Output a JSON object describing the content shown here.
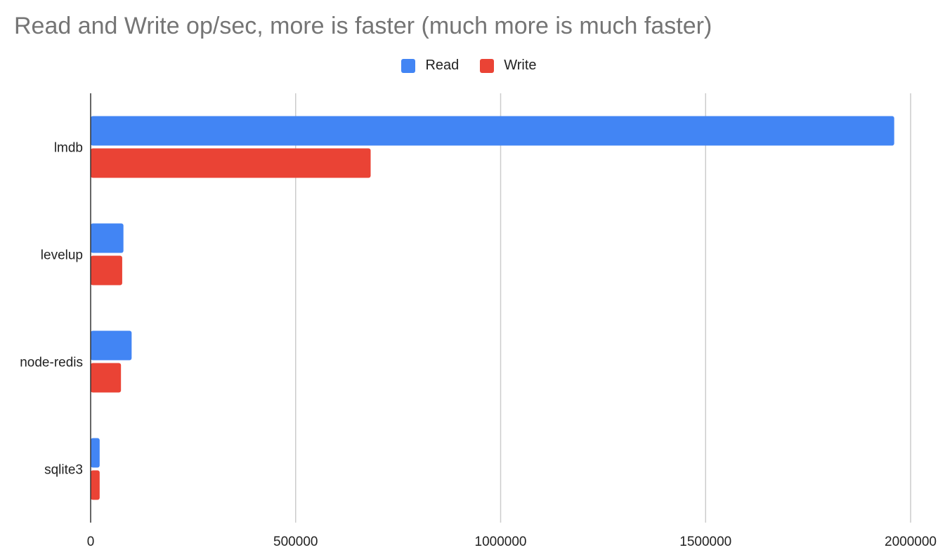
{
  "chart_data": {
    "type": "bar",
    "orientation": "horizontal",
    "title": "Read and Write op/sec, more is faster (much more is much faster)",
    "categories": [
      "lmdb",
      "levelup",
      "node-redis",
      "sqlite3"
    ],
    "series": [
      {
        "name": "Read",
        "color": "#4285f4",
        "values": [
          1960000,
          80000,
          100000,
          22000
        ]
      },
      {
        "name": "Write",
        "color": "#ea4335",
        "values": [
          683000,
          77000,
          74000,
          22000
        ]
      }
    ],
    "xlim": [
      0,
      2000000
    ],
    "xticks": [
      "0",
      "500000",
      "1000000",
      "1500000",
      "2000000"
    ],
    "tick_values": [
      0,
      500000,
      1000000,
      1500000,
      2000000
    ],
    "grid": true,
    "legend": "top-center"
  }
}
